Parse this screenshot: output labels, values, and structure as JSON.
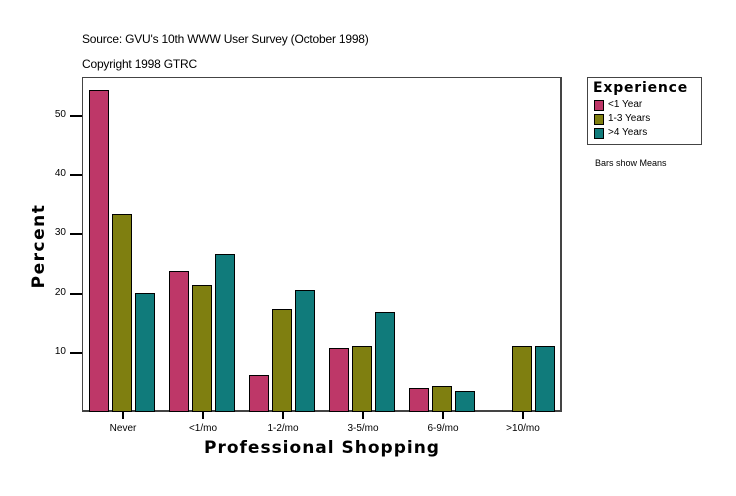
{
  "header": {
    "source": "Source: GVU's 10th WWW User Survey (October 1998)",
    "copyright": "Copyright 1998 GTRC"
  },
  "legend": {
    "title": "Experience",
    "items": [
      {
        "label": "<1 Year",
        "color": "#BE3768"
      },
      {
        "label": "1-3 Years",
        "color": "#7F7F10"
      },
      {
        "label": ">4 Years",
        "color": "#107B7B"
      }
    ]
  },
  "note": "Bars show Means",
  "axes": {
    "xlabel": "Professional Shopping",
    "ylabel": "Percent",
    "yticks": [
      "10",
      "20",
      "30",
      "40",
      "50"
    ]
  },
  "chart_data": {
    "type": "bar",
    "title": "Source: GVU's 10th WWW User Survey (October 1998)",
    "subtitle": "Copyright 1998 GTRC",
    "xlabel": "Professional Shopping",
    "ylabel": "Percent",
    "categories": [
      "Never",
      "<1/mo",
      "1-2/mo",
      "3-5/mo",
      "6-9/mo",
      ">10/mo"
    ],
    "series": [
      {
        "name": "<1 Year",
        "color": "#BE3768",
        "values": [
          54.4,
          23.8,
          6.3,
          10.8,
          4.1,
          0
        ]
      },
      {
        "name": "1-3 Years",
        "color": "#7F7F10",
        "values": [
          33.4,
          21.5,
          17.4,
          11.2,
          4.4,
          11.2
        ]
      },
      {
        "name": ">4 Years",
        "color": "#107B7B",
        "values": [
          20.1,
          26.7,
          20.6,
          16.9,
          3.6,
          11.2
        ]
      }
    ],
    "ylim": [
      0,
      56.5
    ],
    "yticks": [
      10,
      20,
      30,
      40,
      50
    ],
    "grid": false,
    "legend_position": "right",
    "legend_title": "Experience",
    "annotations": [
      "Bars show Means"
    ]
  }
}
